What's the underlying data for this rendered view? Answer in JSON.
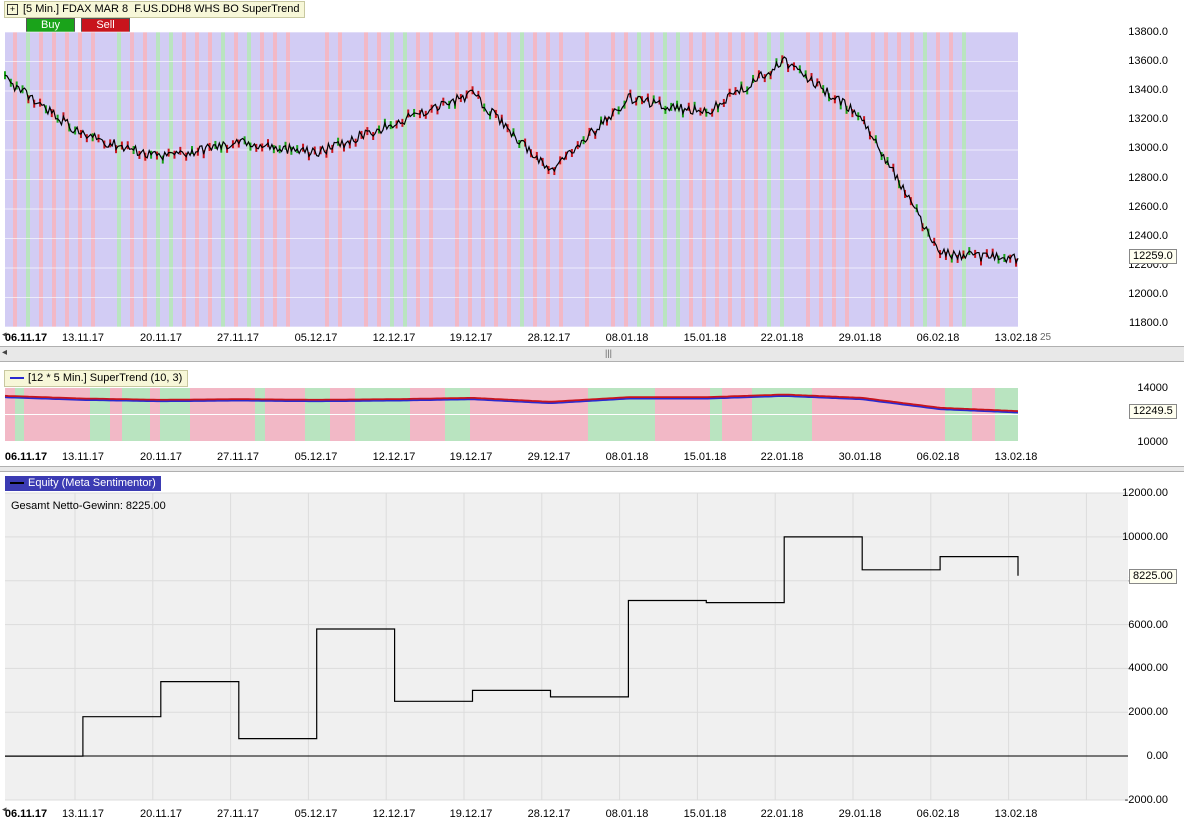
{
  "main_chart": {
    "title_prefix": "[5 Min.] FDAX MAR 8",
    "title_strategy": "F.US.DDH8 WHS BO SuperTrend",
    "buy_label": "Buy",
    "sell_label": "Sell",
    "y_labels": [
      "13800.0",
      "13600.0",
      "13400.0",
      "13200.0",
      "13000.0",
      "12800.0",
      "12600.0",
      "12400.0",
      "12200.0",
      "12000.0",
      "11800.0"
    ],
    "last_price": "12259.0",
    "x_labels": [
      "06.11.17",
      "13.11.17",
      "20.11.17",
      "27.11.17",
      "05.12.17",
      "12.12.17",
      "19.12.17",
      "28.12.17",
      "08.01.18",
      "15.01.18",
      "22.01.18",
      "29.01.18",
      "06.02.18",
      "13.02.18"
    ],
    "x_extra": "25",
    "colors": {
      "buy": "#1aa31a",
      "sell": "#c8141c",
      "bg_green": "#b9e4c0",
      "bg_red": "#f2b8c6",
      "bg_violet": "#d2ccf4"
    }
  },
  "indicator_chart": {
    "legend": "[12 * 5 Min.] SuperTrend  (10, 3)",
    "y_labels": [
      "14000",
      "10000"
    ],
    "last_value": "12249.5",
    "x_labels": [
      "06.11.17",
      "13.11.17",
      "20.11.17",
      "27.11.17",
      "05.12.17",
      "12.12.17",
      "19.12.17",
      "29.12.17",
      "08.01.18",
      "15.01.18",
      "22.01.18",
      "30.01.18",
      "06.02.18",
      "13.02.18"
    ]
  },
  "equity_chart": {
    "legend": "Equity (Meta Sentimentor)",
    "net_profit": "Gesamt Netto-Gewinn: 8225.00",
    "y_labels": [
      "12000.00",
      "10000.00",
      "8000.00",
      "6000.00",
      "4000.00",
      "2000.00",
      "0.00",
      "-2000.00"
    ],
    "last_value": "8225.00",
    "x_labels": [
      "06.11.17",
      "13.11.17",
      "20.11.17",
      "27.11.17",
      "05.12.17",
      "12.12.17",
      "19.12.17",
      "28.12.17",
      "08.01.18",
      "15.01.18",
      "22.01.18",
      "29.01.18",
      "06.02.18",
      "13.02.18"
    ]
  },
  "chart_data": [
    {
      "type": "line",
      "title": "[5 Min.] FDAX MAR 8",
      "xlabel": "",
      "ylabel": "",
      "ylim": [
        11800,
        13800
      ],
      "x": [
        "06.11.17",
        "13.11.17",
        "20.11.17",
        "27.11.17",
        "05.12.17",
        "12.12.17",
        "19.12.17",
        "28.12.17",
        "08.01.18",
        "15.01.18",
        "22.01.18",
        "29.01.18",
        "06.02.18",
        "13.02.18"
      ],
      "series": [
        {
          "name": "FDAX MAR 8",
          "values": [
            13480,
            13100,
            12950,
            13050,
            12980,
            13180,
            13380,
            12850,
            13350,
            13250,
            13600,
            13220,
            12300,
            12259
          ]
        }
      ]
    },
    {
      "type": "line",
      "title": "[12 * 5 Min.] SuperTrend  (10, 3)",
      "xlabel": "",
      "ylabel": "",
      "ylim": [
        10000,
        14000
      ],
      "x": [
        "06.11.17",
        "13.11.17",
        "20.11.17",
        "27.11.17",
        "05.12.17",
        "12.12.17",
        "19.12.17",
        "29.12.17",
        "08.01.18",
        "15.01.18",
        "22.01.18",
        "30.01.18",
        "06.02.18",
        "13.02.18"
      ],
      "series": [
        {
          "name": "SuperTrend",
          "values": [
            13400,
            13200,
            13100,
            13150,
            13100,
            13150,
            13250,
            12950,
            13300,
            13300,
            13500,
            13250,
            12500,
            12249.5
          ]
        }
      ]
    },
    {
      "type": "line",
      "title": "Equity (Meta Sentimentor)",
      "xlabel": "",
      "ylabel": "",
      "ylim": [
        -2000,
        12000
      ],
      "x": [
        "06.11.17",
        "13.11.17",
        "20.11.17",
        "27.11.17",
        "05.12.17",
        "12.12.17",
        "19.12.17",
        "28.12.17",
        "08.01.18",
        "15.01.18",
        "22.01.18",
        "29.01.18",
        "06.02.18",
        "13.02.18"
      ],
      "series": [
        {
          "name": "Equity (Meta Sentimentor)",
          "values": [
            0,
            1800,
            3400,
            800,
            5800,
            2500,
            3000,
            2700,
            7100,
            7000,
            10000,
            8500,
            9100,
            8225
          ]
        }
      ]
    }
  ]
}
